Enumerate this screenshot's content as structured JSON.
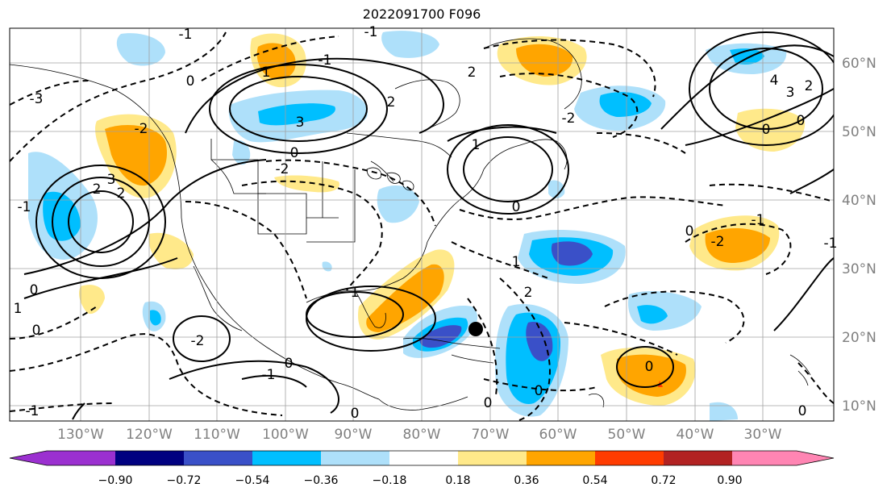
{
  "title": "2022091700 F096",
  "map": {
    "lon_labels": [
      "130°W",
      "120°W",
      "110°W",
      "100°W",
      "90°W",
      "80°W",
      "70°W",
      "60°W",
      "50°W",
      "40°W",
      "30°W"
    ],
    "lat_labels": [
      "60°N",
      "50°N",
      "40°N",
      "30°N",
      "20°N",
      "10°N"
    ],
    "contour_labels": [
      "-3",
      "-1",
      "0",
      "1",
      "-2",
      "3",
      "2",
      "-1",
      "2",
      "0",
      "3",
      "-2",
      "1",
      "0",
      "-1",
      "2",
      "4",
      "3",
      "2",
      "0",
      "-2",
      "0",
      "-1",
      "0",
      "0",
      "-2",
      "2",
      "1",
      "2",
      "0",
      "-1",
      "-2",
      "-1",
      "1",
      "0",
      "0",
      "-1",
      "-1",
      "0",
      "0",
      "0",
      "0",
      "1"
    ],
    "marker": "black-dot"
  },
  "colorbar": {
    "colors": [
      "#9b30d0",
      "#000080",
      "#3a50c8",
      "#00bfff",
      "#aee0fa",
      "#ffffff",
      "#ffe98a",
      "#ffa500",
      "#ff3c00",
      "#b22222",
      "#ff85b3"
    ],
    "tick_labels": [
      "−0.90",
      "−0.72",
      "−0.54",
      "−0.36",
      "−0.18",
      "0.18",
      "0.36",
      "0.54",
      "0.72",
      "0.90"
    ]
  }
}
